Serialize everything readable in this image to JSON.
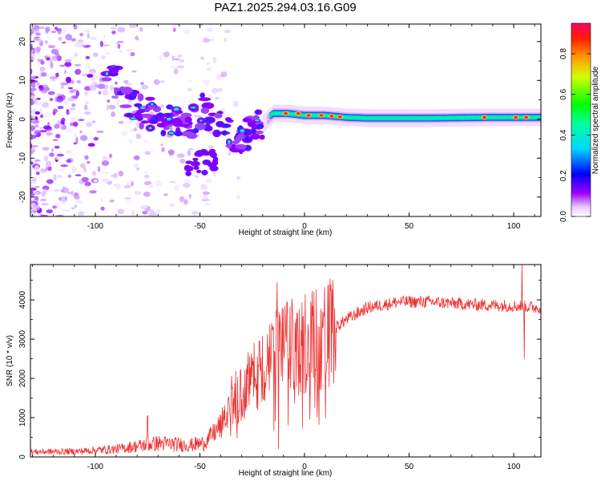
{
  "title": "PAZ1.2025.294.03.16.G09",
  "chart_data": [
    {
      "type": "heatmap",
      "title": "PAZ1.2025.294.03.16.G09",
      "xlabel": "Height of straight line (km)",
      "ylabel": "Frequency (Hz)",
      "xlim": [
        -131,
        113
      ],
      "ylim": [
        -25,
        24.5
      ],
      "xticks": [
        -100,
        -50,
        0,
        50,
        100
      ],
      "yticks": [
        -20,
        -10,
        0,
        10,
        20
      ],
      "xtick_labels": [
        "-100",
        "-50",
        "0",
        "50",
        "100"
      ],
      "ytick_labels": [
        "-20",
        "-10",
        "0",
        "10",
        "20"
      ],
      "ridge": [
        {
          "x": -90,
          "f": 10
        },
        {
          "x": -85,
          "f": 5
        },
        {
          "x": -78,
          "f": 2
        },
        {
          "x": -70,
          "f": 1
        },
        {
          "x": -62,
          "f": -1
        },
        {
          "x": -55,
          "f": -2
        },
        {
          "x": -48,
          "f": 3
        },
        {
          "x": -44,
          "f": 0
        },
        {
          "x": -38,
          "f": -2
        },
        {
          "x": -32,
          "f": -5
        },
        {
          "x": -25,
          "f": -3
        },
        {
          "x": -20,
          "f": -1
        },
        {
          "x": -15,
          "f": 1.5
        },
        {
          "x": -8,
          "f": 1.5
        },
        {
          "x": 0,
          "f": 1
        },
        {
          "x": 10,
          "f": 1
        },
        {
          "x": 20,
          "f": 0.5
        },
        {
          "x": 30,
          "f": 0.3
        },
        {
          "x": 60,
          "f": 0.3
        },
        {
          "x": 90,
          "f": 0.5
        },
        {
          "x": 100,
          "f": 0.5
        },
        {
          "x": 113,
          "f": 0.5
        }
      ],
      "colorbar": {
        "label": "Normalized spectral amplitude",
        "range": [
          0,
          0.95
        ],
        "ticks": [
          0.0,
          0.2,
          0.4,
          0.6,
          0.8
        ],
        "tick_labels": [
          "0.0",
          "0.2",
          "0.4",
          "0.6",
          "0.8"
        ]
      }
    },
    {
      "type": "line",
      "xlabel": "Height of straight line (km)",
      "ylabel": "SNR (10 * v/v)",
      "xlim": [
        -131,
        113
      ],
      "ylim": [
        0,
        4900
      ],
      "xticks": [
        -100,
        -50,
        0,
        50,
        100
      ],
      "yticks": [
        0,
        1000,
        2000,
        3000,
        4000
      ],
      "xtick_labels": [
        "-100",
        "-50",
        "0",
        "50",
        "100"
      ],
      "ytick_labels": [
        "0",
        "1000",
        "2000",
        "3000",
        "4000"
      ],
      "color": "#ee3333",
      "envelope": [
        {
          "x": -131,
          "y": 130
        },
        {
          "x": -110,
          "y": 140
        },
        {
          "x": -90,
          "y": 200
        },
        {
          "x": -70,
          "y": 350
        },
        {
          "x": -55,
          "y": 300
        },
        {
          "x": -48,
          "y": 350
        },
        {
          "x": -40,
          "y": 800
        },
        {
          "x": -30,
          "y": 1600
        },
        {
          "x": -20,
          "y": 2300
        },
        {
          "x": -12,
          "y": 2700
        },
        {
          "x": 0,
          "y": 2900
        },
        {
          "x": 10,
          "y": 3100
        },
        {
          "x": 20,
          "y": 3500
        },
        {
          "x": 30,
          "y": 3800
        },
        {
          "x": 45,
          "y": 3950
        },
        {
          "x": 60,
          "y": 3950
        },
        {
          "x": 80,
          "y": 3880
        },
        {
          "x": 100,
          "y": 3850
        },
        {
          "x": 113,
          "y": 3800
        }
      ],
      "spikes": [
        {
          "x": -13,
          "y": 4450
        },
        {
          "x": -12.5,
          "y": 200
        },
        {
          "x": 5,
          "y": 1250
        },
        {
          "x": 104,
          "y": 4900
        },
        {
          "x": 105,
          "y": 2500
        },
        {
          "x": -75,
          "y": 1050
        }
      ]
    }
  ]
}
